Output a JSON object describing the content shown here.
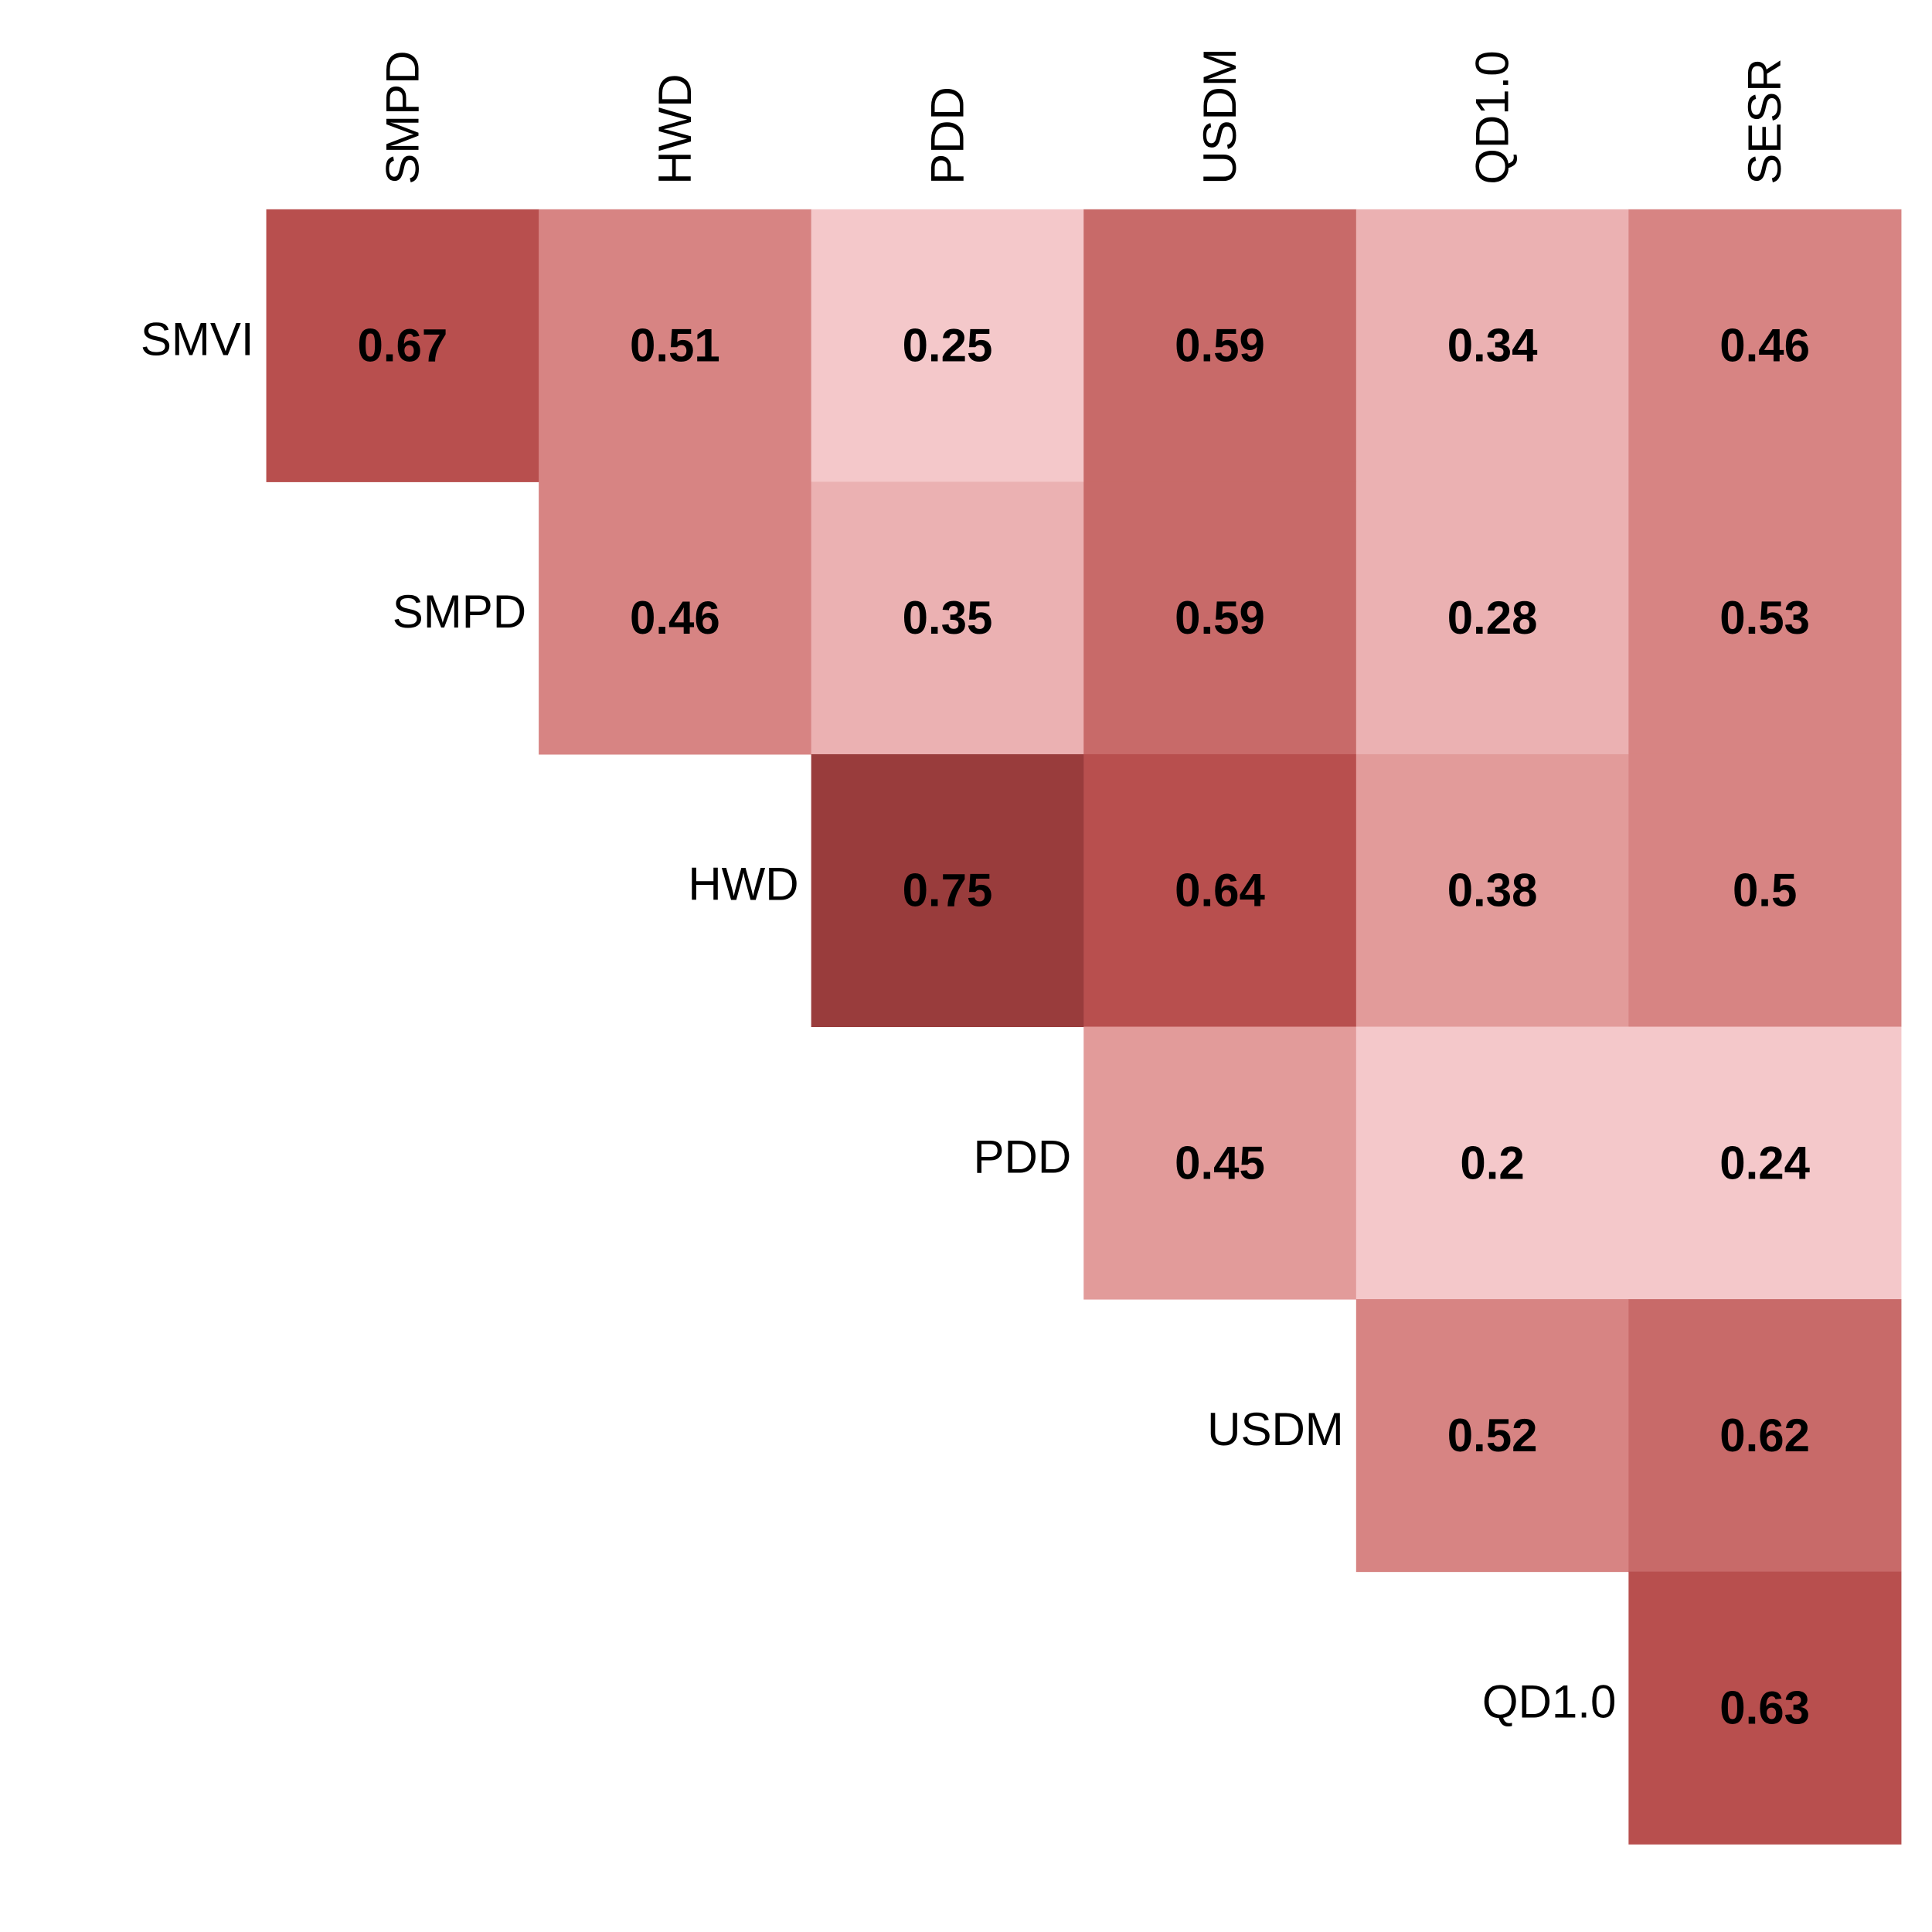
{
  "chart_data": {
    "type": "heatmap",
    "title": "",
    "columns": [
      "SMPD",
      "HWD",
      "PDD",
      "USDM",
      "QD1.0",
      "SESR"
    ],
    "rows": [
      "SMVI",
      "SMPD",
      "HWD",
      "PDD",
      "USDM",
      "QD1.0"
    ],
    "values": [
      [
        0.67,
        0.51,
        0.25,
        0.59,
        0.34,
        0.46
      ],
      [
        null,
        0.46,
        0.35,
        0.59,
        0.28,
        0.53
      ],
      [
        null,
        null,
        0.75,
        0.64,
        0.38,
        0.5
      ],
      [
        null,
        null,
        null,
        0.45,
        0.2,
        0.24
      ],
      [
        null,
        null,
        null,
        null,
        0.52,
        0.62
      ],
      [
        null,
        null,
        null,
        null,
        null,
        0.63
      ]
    ],
    "value_labels": [
      [
        "0.67",
        "0.51",
        "0.25",
        "0.59",
        "0.34",
        "0.46"
      ],
      [
        null,
        "0.46",
        "0.35",
        "0.59",
        "0.28",
        "0.53"
      ],
      [
        null,
        null,
        "0.75",
        "0.64",
        "0.38",
        "0.5"
      ],
      [
        null,
        null,
        null,
        "0.45",
        "0.2",
        "0.24"
      ],
      [
        null,
        null,
        null,
        null,
        "0.52",
        "0.62"
      ],
      [
        null,
        null,
        null,
        null,
        null,
        "0.63"
      ]
    ],
    "layout": "upper-triangle",
    "column_labels_position": "top",
    "column_labels_rotation": "vertical",
    "row_labels_position": "diagonal-left",
    "color_scale": {
      "type": "binned",
      "bins": [
        {
          "max": 0.25,
          "color": "#f4c8ca"
        },
        {
          "max": 0.35,
          "color": "#ebb1b2"
        },
        {
          "max": 0.45,
          "color": "#e29b9a"
        },
        {
          "max": 0.55,
          "color": "#d78483"
        },
        {
          "max": 0.62,
          "color": "#c86a69"
        },
        {
          "max": 0.7,
          "color": "#b84f4e"
        },
        {
          "max": 1.0,
          "color": "#993c3c"
        }
      ]
    },
    "grid": false,
    "legend": "none"
  }
}
